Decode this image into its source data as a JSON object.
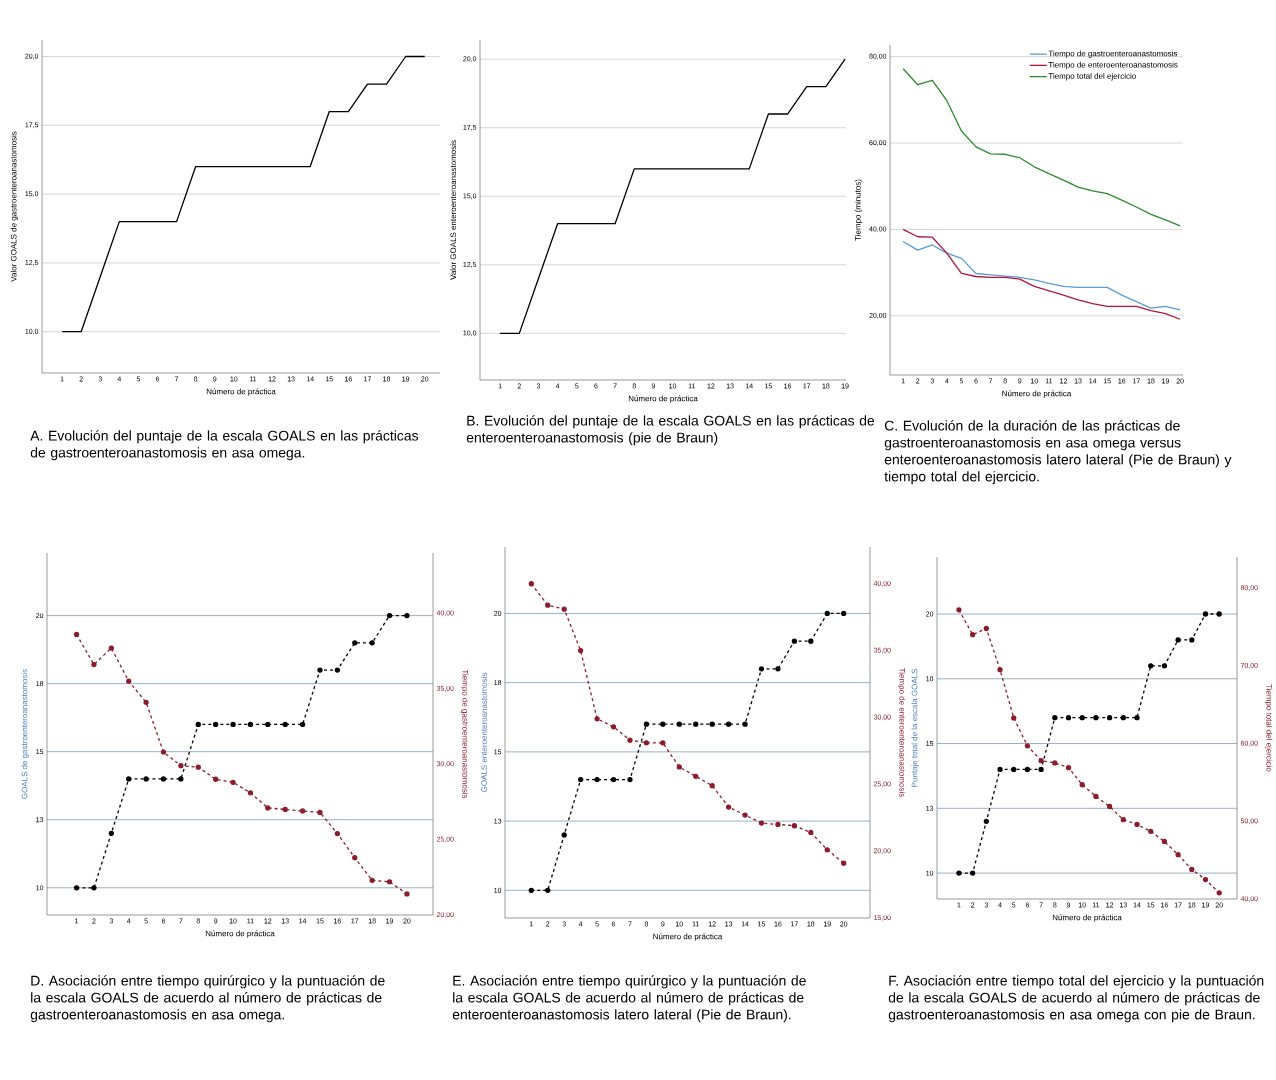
{
  "chart_data": [
    {
      "type": "line",
      "xlabel": "Número de práctica",
      "ylabel": "Valor GOALS de gastroenteroanastomosis",
      "annotations": [
        "A. Evolución del puntaje de la escala GOALS en las prácticas de gastroenteroanastomosis en asa omega."
      ],
      "categories": [
        "1",
        "2",
        "3",
        "4",
        "5",
        "6",
        "7",
        "8",
        "9",
        "10",
        "11",
        "12",
        "13",
        "14",
        "15",
        "16",
        "17",
        "18",
        "19",
        "20"
      ],
      "ylim": [
        8.5,
        20.6
      ],
      "yticks": [
        {
          "value": 10,
          "label": "10,0"
        },
        {
          "value": 12.5,
          "label": "12,5"
        },
        {
          "value": 15,
          "label": "15,0"
        },
        {
          "value": 17.5,
          "label": "17,5"
        },
        {
          "value": 20,
          "label": "20,0"
        }
      ],
      "grid": "y",
      "line_style": "solid",
      "series": [
        {
          "color": "#000000",
          "values": [
            10,
            10,
            12,
            14,
            14,
            14,
            14,
            16,
            16,
            16,
            16,
            16,
            16,
            16,
            18,
            18,
            19,
            19,
            20,
            20
          ]
        }
      ]
    },
    {
      "type": "line",
      "xlabel": "Número de práctica",
      "ylabel": "Valor GOALS enteroenteroanastomosis",
      "annotations": [
        "B. Evolución del puntaje de la escala GOALS en las prácticas de enteroenteroanastomosis (pie de Braun)"
      ],
      "categories": [
        "1",
        "2",
        "3",
        "4",
        "5",
        "6",
        "7",
        "8",
        "9",
        "10",
        "11",
        "12",
        "13",
        "14",
        "15",
        "16",
        "17",
        "18",
        "19"
      ],
      "ylim": [
        8.3,
        20.7
      ],
      "yticks": [
        {
          "value": 10,
          "label": "10,0"
        },
        {
          "value": 12.5,
          "label": "12,5"
        },
        {
          "value": 15,
          "label": "15,0"
        },
        {
          "value": 17.5,
          "label": "17,5"
        },
        {
          "value": 20,
          "label": "20,0"
        }
      ],
      "grid": "y",
      "line_style": "solid",
      "series": [
        {
          "color": "#000000",
          "values": [
            10,
            10,
            12,
            14,
            14,
            14,
            14,
            16,
            16,
            16,
            16,
            16,
            16,
            16,
            18,
            18,
            19,
            19,
            20
          ]
        }
      ]
    },
    {
      "type": "line",
      "xlabel": "Número de práctica",
      "ylabel": "Tiempo (minutos)",
      "annotations": [
        "C. Evolución de la duración de las prácticas de gastroenteroanastomosis en asa omega versus enteroenteroanastomosis latero lateral (Pie de Braun) y tiempo total del ejercicio."
      ],
      "categories": [
        "1",
        "2",
        "3",
        "4",
        "5",
        "6",
        "7",
        "8",
        "9",
        "10",
        "11",
        "12",
        "13",
        "14",
        "15",
        "16",
        "17",
        "18",
        "19",
        "20"
      ],
      "ylim": [
        6.3,
        82.7
      ],
      "yticks": [
        {
          "value": 20,
          "label": "20,00"
        },
        {
          "value": 40,
          "label": "40,00"
        },
        {
          "value": 60,
          "label": "60,00"
        },
        {
          "value": 80,
          "label": "80,00"
        }
      ],
      "grid": "y",
      "legend": "top right",
      "line_style": "solid",
      "series": [
        {
          "name": "Tiempo de gastroenteroanastomosis",
          "color": "#5b9bd5",
          "values": [
            37.2,
            35.2,
            36.4,
            34.5,
            33.3,
            29.8,
            29.5,
            29.2,
            28.9,
            28.3,
            27.5,
            26.8,
            26.6,
            26.6,
            26.6,
            24.8,
            23.3,
            21.8,
            22.2,
            21.4
          ]
        },
        {
          "name": "Tiempo de enteroenteroanastomosis",
          "color": "#b0173f",
          "values": [
            40.0,
            38.3,
            38.2,
            34.5,
            29.8,
            29.1,
            28.9,
            28.9,
            28.5,
            26.8,
            25.8,
            24.8,
            23.7,
            22.8,
            22.2,
            22.2,
            22.2,
            21.2,
            20.5,
            19.2
          ]
        },
        {
          "name": "Tiempo total del ejercicio",
          "color": "#2e8b2e",
          "values": [
            77.2,
            73.5,
            74.5,
            69.8,
            62.8,
            59.1,
            57.5,
            57.4,
            56.6,
            54.5,
            52.9,
            51.4,
            49.8,
            48.9,
            48.3,
            46.8,
            45.2,
            43.5,
            42.2,
            40.8
          ]
        }
      ]
    },
    {
      "type": "line",
      "xlabel": "Número de práctica",
      "ylabel": "GOALS de gastroenteroanastomosis",
      "y2label": "Tiempo de gastroenteroanastomosis",
      "annotations": [
        "D. Asociación entre tiempo quirúrgico y la puntuación de la escala GOALS de acuerdo al número de prácticas de gastroenteroanastomosis en asa omega."
      ],
      "categories": [
        "1",
        "2",
        "3",
        "4",
        "5",
        "6",
        "7",
        "8",
        "9",
        "10",
        "11",
        "12",
        "13",
        "14",
        "15",
        "16",
        "17",
        "18",
        "19",
        "20"
      ],
      "ylim": [
        9,
        22.3
      ],
      "yticks": [
        {
          "value": 10,
          "label": "10"
        },
        {
          "value": 12.5,
          "label": "13"
        },
        {
          "value": 15,
          "label": "15"
        },
        {
          "value": 17.5,
          "label": "18"
        },
        {
          "value": 20,
          "label": "20"
        }
      ],
      "y2lim": [
        20,
        44
      ],
      "y2ticks": [
        {
          "value": 20,
          "label": "20,00"
        },
        {
          "value": 25,
          "label": "25,00"
        },
        {
          "value": 30,
          "label": "30,00"
        },
        {
          "value": 35,
          "label": "35,00"
        },
        {
          "value": 40,
          "label": "40,00"
        }
      ],
      "grid": "y",
      "marker": "circle",
      "line_style": "dashed",
      "series": [
        {
          "color": "#000000",
          "values": [
            10,
            10,
            12,
            14,
            14,
            14,
            14,
            16,
            16,
            16,
            16,
            16,
            16,
            16,
            18,
            18,
            19,
            19,
            20,
            20
          ]
        },
        {
          "color": "#8b1c2c",
          "axis": "y2",
          "values": [
            38.6,
            36.6,
            37.7,
            35.5,
            34.1,
            30.8,
            29.9,
            29.8,
            29.0,
            28.8,
            28.1,
            27.1,
            27.0,
            26.9,
            26.8,
            25.4,
            23.8,
            22.3,
            22.2,
            21.4
          ]
        }
      ]
    },
    {
      "type": "line",
      "xlabel": "Número de práctica",
      "ylabel": "GOALS enteroenteroanastomosis",
      "y2label": "Tiempo de enteroenteroanastomosis",
      "annotations": [
        "E. Asociación entre tiempo quirúrgico y la puntuación de la escala GOALS de acuerdo al número de prácticas de enteroenteroanastomosis latero lateral (Pie de Braun)."
      ],
      "categories": [
        "1",
        "2",
        "3",
        "4",
        "5",
        "6",
        "7",
        "8",
        "9",
        "10",
        "11",
        "12",
        "13",
        "14",
        "15",
        "16",
        "17",
        "18",
        "19",
        "20"
      ],
      "ylim": [
        9,
        22.4
      ],
      "yticks": [
        {
          "value": 10,
          "label": "10"
        },
        {
          "value": 12.5,
          "label": "13"
        },
        {
          "value": 15,
          "label": "15"
        },
        {
          "value": 17.5,
          "label": "18"
        },
        {
          "value": 20,
          "label": "20"
        }
      ],
      "y2lim": [
        15,
        42.75
      ],
      "y2ticks": [
        {
          "value": 15,
          "label": "15,00"
        },
        {
          "value": 20,
          "label": "20,00"
        },
        {
          "value": 25,
          "label": "25,00"
        },
        {
          "value": 30,
          "label": "30,00"
        },
        {
          "value": 35,
          "label": "35,00"
        },
        {
          "value": 40,
          "label": "40,00"
        }
      ],
      "grid": "y",
      "marker": "circle",
      "line_style": "dashed",
      "series": [
        {
          "color": "#000000",
          "values": [
            10,
            10,
            12,
            14,
            14,
            14,
            14,
            16,
            16,
            16,
            16,
            16,
            16,
            16,
            18,
            18,
            19,
            19,
            20,
            20
          ]
        },
        {
          "color": "#8b1c2c",
          "axis": "y2",
          "values": [
            40.0,
            38.4,
            38.1,
            35.0,
            29.9,
            29.3,
            28.3,
            28.1,
            28.1,
            26.3,
            25.6,
            24.9,
            23.3,
            22.7,
            22.1,
            22.0,
            21.9,
            21.4,
            20.1,
            19.1
          ]
        }
      ]
    },
    {
      "type": "line",
      "xlabel": "Número de práctica",
      "ylabel": "Puntaje total de la escala GOALS",
      "y2label": "Tiempo total del ejercicio",
      "annotations": [
        "F. Asociación entre tiempo total del ejercicio y la puntuación de la escala GOALS de acuerdo al número de prácticas de gastroenteroanastomosis en asa omega con pie de Braun."
      ],
      "categories": [
        "1",
        "2",
        "3",
        "4",
        "5",
        "6",
        "7",
        "8",
        "9",
        "10",
        "11",
        "12",
        "13",
        "14",
        "15",
        "16",
        "17",
        "18",
        "19",
        "20"
      ],
      "ylim": [
        9,
        22.2
      ],
      "yticks": [
        {
          "value": 10,
          "label": "10"
        },
        {
          "value": 12.5,
          "label": "13"
        },
        {
          "value": 15,
          "label": "15"
        },
        {
          "value": 17.5,
          "label": "18"
        },
        {
          "value": 20,
          "label": "20"
        }
      ],
      "y2lim": [
        40,
        84
      ],
      "y2ticks": [
        {
          "value": 40,
          "label": "40,00"
        },
        {
          "value": 50,
          "label": "50,00"
        },
        {
          "value": 60,
          "label": "60,00"
        },
        {
          "value": 70,
          "label": "70,00"
        },
        {
          "value": 80,
          "label": "80,00"
        }
      ],
      "grid": "y",
      "marker": "circle",
      "line_style": "dashed",
      "series": [
        {
          "color": "#000000",
          "values": [
            10,
            10,
            12,
            14,
            14,
            14,
            14,
            16,
            16,
            16,
            16,
            16,
            16,
            16,
            18,
            18,
            19,
            19,
            20,
            20
          ]
        },
        {
          "color": "#8b1c2c",
          "axis": "y2",
          "values": [
            77.2,
            74.0,
            74.8,
            69.5,
            63.3,
            59.7,
            57.8,
            57.5,
            56.9,
            54.7,
            53.2,
            51.9,
            50.2,
            49.6,
            48.7,
            47.4,
            45.7,
            43.8,
            42.5,
            40.8
          ]
        }
      ]
    }
  ]
}
